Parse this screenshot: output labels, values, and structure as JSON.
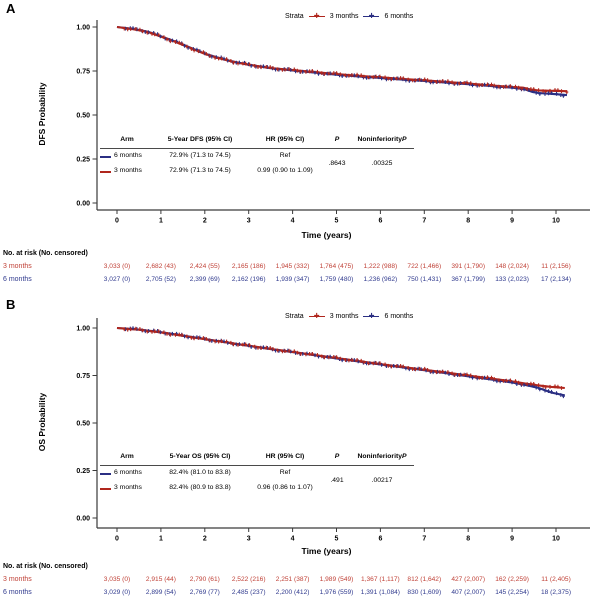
{
  "colors": {
    "red": "#b0261d",
    "blue": "#2b2f83",
    "red_text": "#c04238",
    "blue_text": "#303a8e",
    "axis": "#3a3a3a"
  },
  "panels": [
    {
      "label": "A",
      "ylabel": "DFS Probability",
      "xlabel": "Time (years)",
      "yticks": [
        "1.00",
        "0.75",
        "0.50",
        "0.25",
        "0.00"
      ],
      "xticks": [
        "0",
        "1",
        "2",
        "3",
        "4",
        "5",
        "6",
        "7",
        "8",
        "9",
        "10"
      ],
      "legend": {
        "title": "Strata",
        "items": [
          {
            "label": "3 months",
            "color": "red"
          },
          {
            "label": "6 months",
            "color": "blue"
          }
        ]
      },
      "stats": {
        "col_arm": "Arm",
        "col_estimate": "5-Year DFS (95% CI)",
        "col_hr": "HR (95% CI)",
        "col_p": "P",
        "col_noninferiority_prefix": "Noninferiority ",
        "rows": [
          {
            "arm": "6 months",
            "color": "blue",
            "estimate": "72.9% (71.3 to 74.5)",
            "hr": "Ref"
          },
          {
            "arm": "3 months",
            "color": "red",
            "estimate": "72.9% (71.3 to 74.5)",
            "hr": "0.99 (0.90 to 1.09)"
          }
        ],
        "p": ".8643",
        "noninferiority_p": ".00325"
      },
      "risk": {
        "title": "No. at risk (No. censored)",
        "rows": [
          {
            "label": "3 months",
            "color": "red_text",
            "values": [
              "3,033 (0)",
              "2,682 (43)",
              "2,424 (55)",
              "2,165 (186)",
              "1,945 (332)",
              "1,764 (475)",
              "1,222 (988)",
              "722 (1,466)",
              "391 (1,790)",
              "148 (2,024)",
              "11 (2,156)"
            ]
          },
          {
            "label": "6 months",
            "color": "blue_text",
            "values": [
              "3,027 (0)",
              "2,705 (52)",
              "2,399 (69)",
              "2,162 (196)",
              "1,939 (347)",
              "1,759 (480)",
              "1,236 (962)",
              "750 (1,431)",
              "367 (1,799)",
              "133 (2,023)",
              "17 (2,134)"
            ]
          }
        ]
      }
    },
    {
      "label": "B",
      "ylabel": "OS Probability",
      "xlabel": "Time (years)",
      "yticks": [
        "1.00",
        "0.75",
        "0.50",
        "0.25",
        "0.00"
      ],
      "xticks": [
        "0",
        "1",
        "2",
        "3",
        "4",
        "5",
        "6",
        "7",
        "8",
        "9",
        "10"
      ],
      "legend": {
        "title": "Strata",
        "items": [
          {
            "label": "3 months",
            "color": "red"
          },
          {
            "label": "6 months",
            "color": "blue"
          }
        ]
      },
      "stats": {
        "col_arm": "Arm",
        "col_estimate": "5-Year OS (95% CI)",
        "col_hr": "HR (95% CI)",
        "col_p": "P",
        "col_noninferiority_prefix": "Noninferiority ",
        "rows": [
          {
            "arm": "6 months",
            "color": "blue",
            "estimate": "82.4% (81.0 to 83.8)",
            "hr": "Ref"
          },
          {
            "arm": "3 months",
            "color": "red",
            "estimate": "82.4% (80.9 to 83.8)",
            "hr": "0.96 (0.86 to 1.07)"
          }
        ],
        "p": ".491",
        "noninferiority_p": ".00217"
      },
      "risk": {
        "title": "No. at risk (No. censored)",
        "rows": [
          {
            "label": "3 months",
            "color": "red_text",
            "values": [
              "3,035 (0)",
              "2,915 (44)",
              "2,790 (61)",
              "2,522 (216)",
              "2,251 (387)",
              "1,989 (549)",
              "1,367 (1,117)",
              "812 (1,642)",
              "427 (2,007)",
              "162 (2,259)",
              "11 (2,405)"
            ]
          },
          {
            "label": "6 months",
            "color": "blue_text",
            "values": [
              "3,029 (0)",
              "2,899 (54)",
              "2,769 (77)",
              "2,485 (237)",
              "2,200 (412)",
              "1,976 (559)",
              "1,391 (1,084)",
              "830 (1,609)",
              "407 (2,007)",
              "145 (2,254)",
              "18 (2,375)"
            ]
          }
        ]
      }
    }
  ],
  "chart_data": [
    {
      "type": "line",
      "subtype": "kaplan-meier",
      "title": "",
      "xlabel": "Time (years)",
      "ylabel": "DFS Probability",
      "xlim": [
        0,
        10.4
      ],
      "ylim": [
        0,
        1
      ],
      "xticks": [
        0,
        1,
        2,
        3,
        4,
        5,
        6,
        7,
        8,
        9,
        10
      ],
      "yticks": [
        0,
        0.25,
        0.5,
        0.75,
        1.0
      ],
      "legend_position": "top",
      "legend_title": "Strata",
      "series": [
        {
          "name": "3 months",
          "color": "#b0261d",
          "x": [
            0,
            0.35,
            0.7,
            1,
            1.3,
            1.6,
            2,
            2.3,
            2.6,
            3,
            3.5,
            4,
            4.5,
            5,
            5.5,
            6,
            6.5,
            7,
            7.5,
            8,
            8.5,
            9,
            9.25,
            9.45,
            9.6,
            10,
            10.25
          ],
          "y": [
            1,
            0.988,
            0.972,
            0.945,
            0.918,
            0.888,
            0.847,
            0.824,
            0.805,
            0.785,
            0.767,
            0.755,
            0.744,
            0.733,
            0.723,
            0.714,
            0.705,
            0.697,
            0.688,
            0.679,
            0.669,
            0.659,
            0.655,
            0.643,
            0.64,
            0.637,
            0.635
          ]
        },
        {
          "name": "6 months",
          "color": "#2b2f83",
          "x": [
            0,
            0.35,
            0.7,
            1,
            1.3,
            1.6,
            2,
            2.3,
            2.6,
            3,
            3.5,
            4,
            4.5,
            5,
            5.5,
            6,
            6.5,
            7,
            7.5,
            8,
            8.5,
            9,
            9.25,
            9.45,
            9.6,
            10,
            10.25
          ],
          "y": [
            1,
            0.99,
            0.974,
            0.947,
            0.92,
            0.89,
            0.849,
            0.826,
            0.806,
            0.786,
            0.766,
            0.753,
            0.741,
            0.729,
            0.719,
            0.71,
            0.701,
            0.693,
            0.684,
            0.675,
            0.665,
            0.655,
            0.649,
            0.632,
            0.625,
            0.618,
            0.613
          ]
        }
      ]
    },
    {
      "type": "line",
      "subtype": "kaplan-meier",
      "title": "",
      "xlabel": "Time (years)",
      "ylabel": "OS Probability",
      "xlim": [
        0,
        10.4
      ],
      "ylim": [
        0,
        1
      ],
      "xticks": [
        0,
        1,
        2,
        3,
        4,
        5,
        6,
        7,
        8,
        9,
        10
      ],
      "yticks": [
        0,
        0.25,
        0.5,
        0.75,
        1.0
      ],
      "legend_position": "top",
      "legend_title": "Strata",
      "series": [
        {
          "name": "3 months",
          "color": "#b0261d",
          "x": [
            0,
            0.5,
            1,
            1.5,
            2,
            2.5,
            3,
            3.5,
            4,
            4.5,
            5,
            5.5,
            6,
            6.5,
            7,
            7.5,
            8,
            8.5,
            9,
            9.3,
            9.6,
            9.9,
            10.2
          ],
          "y": [
            1,
            0.991,
            0.977,
            0.959,
            0.941,
            0.924,
            0.907,
            0.89,
            0.874,
            0.858,
            0.842,
            0.826,
            0.81,
            0.795,
            0.78,
            0.765,
            0.75,
            0.735,
            0.719,
            0.708,
            0.698,
            0.69,
            0.684
          ]
        },
        {
          "name": "6 months",
          "color": "#2b2f83",
          "x": [
            0,
            0.5,
            1,
            1.5,
            2,
            2.5,
            3,
            3.5,
            4,
            4.5,
            5,
            5.5,
            6,
            6.5,
            7,
            7.5,
            8,
            8.5,
            9,
            9.3,
            9.6,
            9.9,
            10.2
          ],
          "y": [
            1,
            0.992,
            0.978,
            0.96,
            0.942,
            0.924,
            0.906,
            0.889,
            0.873,
            0.857,
            0.84,
            0.824,
            0.808,
            0.793,
            0.778,
            0.762,
            0.746,
            0.73,
            0.713,
            0.7,
            0.685,
            0.66,
            0.645
          ]
        }
      ]
    }
  ]
}
